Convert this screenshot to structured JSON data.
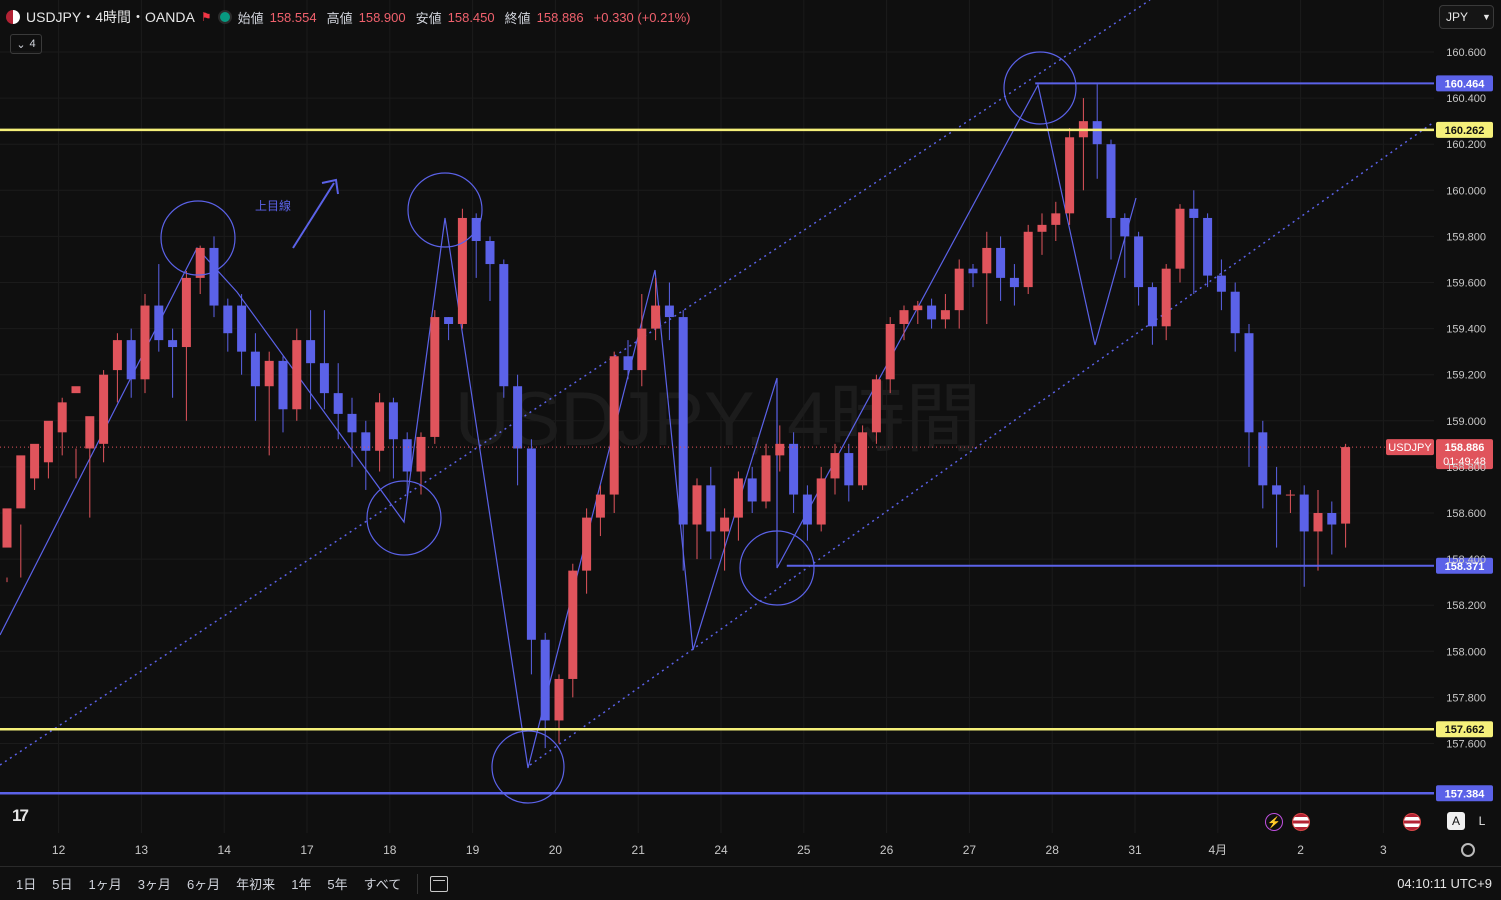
{
  "header": {
    "symbol_line": "USDJPY・4時間・OANDA",
    "open_label": "始値",
    "open_value": "158.554",
    "high_label": "高値",
    "high_value": "158.900",
    "low_label": "安値",
    "low_value": "158.450",
    "close_label": "終値",
    "close_value": "158.886",
    "change": "+0.330 (+0.21%)",
    "indicator_count": "4"
  },
  "currency_button": "JPY",
  "watermark": "USDJPY, 4時間",
  "annotation_text": "上目線",
  "price_tag_symbol": "USDJPY",
  "price_tag_value": "158.886",
  "price_tag_countdown": "01:49:48",
  "footer": {
    "ranges": [
      "1日",
      "5日",
      "1ヶ月",
      "3ヶ月",
      "6ヶ月",
      "年初来",
      "1年",
      "5年",
      "すべて"
    ],
    "clock": "04:10:11 UTC+9"
  },
  "buttons": {
    "auto": "A",
    "log": "L"
  },
  "colors": {
    "up": "#e0545c",
    "down": "#5b62e8",
    "yellow": "#f5f07a",
    "blue_line": "#5b62e8",
    "bg": "#0f0f0f"
  },
  "chart_data": {
    "type": "candlestick",
    "symbol": "USDJPY",
    "timeframe": "4h",
    "ylim": [
      157.2,
      160.78
    ],
    "y_ticks": [
      160.6,
      160.4,
      160.2,
      160.0,
      159.8,
      159.6,
      159.4,
      159.2,
      159.0,
      158.8,
      158.6,
      158.4,
      158.2,
      158.0,
      157.8,
      157.6
    ],
    "x_ticks": [
      {
        "label": "12",
        "index": 2
      },
      {
        "label": "13",
        "index": 8
      },
      {
        "label": "14",
        "index": 14
      },
      {
        "label": "17",
        "index": 20
      },
      {
        "label": "18",
        "index": 26
      },
      {
        "label": "19",
        "index": 32
      },
      {
        "label": "20",
        "index": 38
      },
      {
        "label": "21",
        "index": 44
      },
      {
        "label": "24",
        "index": 50
      },
      {
        "label": "25",
        "index": 56
      },
      {
        "label": "26",
        "index": 62
      },
      {
        "label": "27",
        "index": 68
      },
      {
        "label": "28",
        "index": 74
      },
      {
        "label": "31",
        "index": 80
      },
      {
        "label": "4月",
        "index": 86
      },
      {
        "label": "2",
        "index": 92
      },
      {
        "label": "3",
        "index": 98
      }
    ],
    "candles": [
      [
        158.45,
        158.62,
        158.32,
        158.3
      ],
      [
        158.62,
        158.85,
        158.55,
        158.32
      ],
      [
        158.75,
        158.9,
        158.8,
        158.7
      ],
      [
        158.82,
        159.0,
        158.95,
        158.75
      ],
      [
        158.95,
        159.08,
        159.1,
        158.85
      ],
      [
        159.12,
        159.15,
        158.88,
        158.75
      ],
      [
        158.88,
        159.02,
        158.9,
        158.58
      ],
      [
        158.9,
        159.2,
        159.22,
        158.82
      ],
      [
        159.22,
        159.35,
        159.38,
        159.08
      ],
      [
        159.35,
        159.18,
        159.4,
        159.1
      ],
      [
        159.18,
        159.5,
        159.55,
        159.12
      ],
      [
        159.5,
        159.35,
        159.68,
        159.3
      ],
      [
        159.35,
        159.32,
        159.4,
        159.1
      ],
      [
        159.32,
        159.62,
        159.65,
        159.0
      ],
      [
        159.62,
        159.75,
        159.76,
        159.55
      ],
      [
        159.75,
        159.5,
        159.8,
        159.45
      ],
      [
        159.5,
        159.38,
        159.53,
        159.3
      ],
      [
        159.5,
        159.3,
        159.55,
        159.2
      ],
      [
        159.3,
        159.15,
        159.38,
        159.0
      ],
      [
        159.15,
        159.26,
        159.3,
        158.85
      ],
      [
        159.26,
        159.05,
        159.28,
        158.95
      ],
      [
        159.05,
        159.35,
        159.4,
        159.0
      ],
      [
        159.35,
        159.25,
        159.48,
        159.05
      ],
      [
        159.25,
        159.12,
        159.48,
        159.05
      ],
      [
        159.12,
        159.03,
        159.25,
        158.92
      ],
      [
        159.03,
        158.95,
        159.1,
        158.8
      ],
      [
        158.95,
        158.87,
        159.0,
        158.7
      ],
      [
        158.87,
        159.08,
        159.12,
        158.78
      ],
      [
        159.08,
        158.92,
        159.1,
        158.75
      ],
      [
        158.92,
        158.78,
        158.95,
        158.68
      ],
      [
        158.78,
        158.93,
        158.95,
        158.68
      ],
      [
        158.93,
        159.45,
        159.48,
        158.9
      ],
      [
        159.45,
        159.42,
        159.45,
        159.35
      ],
      [
        159.42,
        159.88,
        159.92,
        159.4
      ],
      [
        159.88,
        159.78,
        159.9,
        159.62
      ],
      [
        159.78,
        159.68,
        159.8,
        159.52
      ],
      [
        159.68,
        159.15,
        159.7,
        159.1
      ],
      [
        159.15,
        158.88,
        159.2,
        158.72
      ],
      [
        158.88,
        158.05,
        158.92,
        157.9
      ],
      [
        158.05,
        157.7,
        158.08,
        157.58
      ],
      [
        157.7,
        157.88,
        157.9,
        157.6
      ],
      [
        157.88,
        158.35,
        158.38,
        157.8
      ],
      [
        158.35,
        158.58,
        158.62,
        158.25
      ],
      [
        158.58,
        158.68,
        158.72,
        158.5
      ],
      [
        158.68,
        159.28,
        159.3,
        158.6
      ],
      [
        159.28,
        159.22,
        159.35,
        159.18
      ],
      [
        159.22,
        159.4,
        159.55,
        159.15
      ],
      [
        159.4,
        159.5,
        159.62,
        159.35
      ],
      [
        159.5,
        159.45,
        159.6,
        159.35
      ],
      [
        159.45,
        158.55,
        159.48,
        158.35
      ],
      [
        158.55,
        158.72,
        158.75,
        158.4
      ],
      [
        158.72,
        158.52,
        158.8,
        158.4
      ],
      [
        158.52,
        158.58,
        158.62,
        158.35
      ],
      [
        158.58,
        158.75,
        158.78,
        158.48
      ],
      [
        158.75,
        158.65,
        158.8,
        158.6
      ],
      [
        158.65,
        158.85,
        158.9,
        158.62
      ],
      [
        158.85,
        158.9,
        158.98,
        158.78
      ],
      [
        158.9,
        158.68,
        158.95,
        158.6
      ],
      [
        158.68,
        158.55,
        158.72,
        158.48
      ],
      [
        158.55,
        158.75,
        158.8,
        158.52
      ],
      [
        158.75,
        158.86,
        158.9,
        158.68
      ],
      [
        158.86,
        158.72,
        158.9,
        158.65
      ],
      [
        158.72,
        158.95,
        158.98,
        158.7
      ],
      [
        158.95,
        159.18,
        159.2,
        158.9
      ],
      [
        159.18,
        159.42,
        159.45,
        159.12
      ],
      [
        159.42,
        159.48,
        159.5,
        159.35
      ],
      [
        159.48,
        159.5,
        159.52,
        159.42
      ],
      [
        159.5,
        159.44,
        159.53,
        159.4
      ],
      [
        159.44,
        159.48,
        159.55,
        159.4
      ],
      [
        159.48,
        159.66,
        159.7,
        159.4
      ],
      [
        159.66,
        159.64,
        159.68,
        159.58
      ],
      [
        159.64,
        159.75,
        159.82,
        159.42
      ],
      [
        159.75,
        159.62,
        159.8,
        159.52
      ],
      [
        159.62,
        159.58,
        159.68,
        159.5
      ],
      [
        159.58,
        159.82,
        159.85,
        159.55
      ],
      [
        159.82,
        159.85,
        159.9,
        159.72
      ],
      [
        159.85,
        159.9,
        159.95,
        159.78
      ],
      [
        159.9,
        160.23,
        160.27,
        159.85
      ],
      [
        160.23,
        160.3,
        160.4,
        160.0
      ],
      [
        160.3,
        160.2,
        160.46,
        160.05
      ],
      [
        160.2,
        159.88,
        160.22,
        159.7
      ],
      [
        159.88,
        159.8,
        159.9,
        159.62
      ],
      [
        159.8,
        159.58,
        159.82,
        159.5
      ],
      [
        159.58,
        159.41,
        159.6,
        159.33
      ],
      [
        159.41,
        159.66,
        159.68,
        159.35
      ],
      [
        159.66,
        159.92,
        159.94,
        159.6
      ],
      [
        159.92,
        159.88,
        160.0,
        159.55
      ],
      [
        159.88,
        159.63,
        159.9,
        159.58
      ],
      [
        159.63,
        159.56,
        159.7,
        159.48
      ],
      [
        159.56,
        159.38,
        159.6,
        159.3
      ],
      [
        159.38,
        158.95,
        159.42,
        158.8
      ],
      [
        158.95,
        158.72,
        159.0,
        158.62
      ],
      [
        158.72,
        158.68,
        158.8,
        158.45
      ],
      [
        158.68,
        158.68,
        158.7,
        158.6
      ],
      [
        158.68,
        158.52,
        158.72,
        158.28
      ],
      [
        158.52,
        158.6,
        158.7,
        158.35
      ],
      [
        158.6,
        158.55,
        158.65,
        158.42
      ],
      [
        158.554,
        158.886,
        158.9,
        158.45
      ]
    ],
    "horizontal_lines": [
      {
        "price": 160.262,
        "label": "160.262",
        "color": "#f5f07a"
      },
      {
        "price": 157.662,
        "label": "157.662",
        "color": "#f5f07a"
      },
      {
        "price": 157.384,
        "label": "157.384",
        "color": "#5b62e8"
      }
    ],
    "ray_lines": [
      {
        "price": 160.464,
        "label": "160.464",
        "from_index": 74
      },
      {
        "price": 158.371,
        "label": "158.371",
        "from_index": 56
      }
    ],
    "current_price": 158.886
  }
}
